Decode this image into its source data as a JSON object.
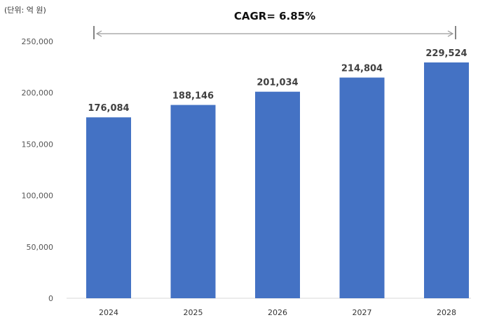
{
  "chart_data": {
    "type": "bar",
    "unit_label": "(단위: 억 원)",
    "annotation": "CAGR= 6.85%",
    "categories": [
      "2024",
      "2025",
      "2026",
      "2027",
      "2028"
    ],
    "values": [
      176084,
      188146,
      201034,
      214804,
      229524
    ],
    "value_labels": [
      "176,084",
      "188,146",
      "201,034",
      "214,804",
      "229,524"
    ],
    "yticks": [
      "0",
      "50,000",
      "100,000",
      "150,000",
      "200,000",
      "250,000"
    ],
    "ylim": [
      0,
      250000
    ],
    "bar_color": "#4472C4",
    "grid": false
  }
}
